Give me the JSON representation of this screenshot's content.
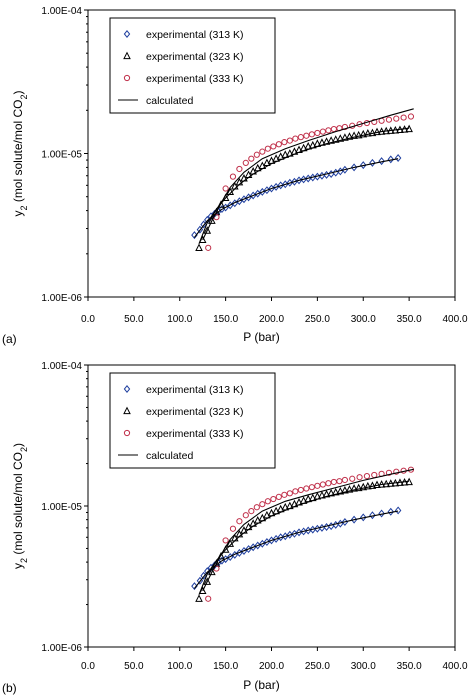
{
  "chart_data": [
    {
      "type": "scatter",
      "panel_label": "(a)",
      "xlabel": "P (bar)",
      "ylabel_main": "y",
      "ylabel_sub": "2",
      "ylabel_rest": " (mol solute/mol CO",
      "ylabel_sub2": "2",
      "ylabel_end": ")",
      "xlim": [
        0,
        400
      ],
      "ylim": [
        1e-06,
        0.0001
      ],
      "yscale": "log",
      "xticks": [
        "0.0",
        "50.0",
        "100.0",
        "150.0",
        "200.0",
        "250.0",
        "300.0",
        "350.0",
        "400.0"
      ],
      "yticks": [
        "1.00E-06",
        "1.00E-05",
        "1.00E-04"
      ],
      "legend_position": "top-left",
      "series": [
        {
          "name": "experimental (313 K)",
          "marker": "diamond",
          "color": "#1f3f9f",
          "x": [
            116,
            122,
            126,
            130,
            134,
            138,
            142,
            146,
            150,
            155,
            160,
            165,
            170,
            175,
            180,
            185,
            190,
            195,
            200,
            205,
            210,
            215,
            220,
            225,
            230,
            235,
            240,
            245,
            250,
            255,
            260,
            265,
            270,
            275,
            280,
            290,
            300,
            310,
            320,
            330,
            338
          ],
          "y": [
            2.7e-06,
            2.95e-06,
            3.2e-06,
            3.45e-06,
            3.65e-06,
            3.8e-06,
            3.95e-06,
            4.1e-06,
            4.2e-06,
            4.35e-06,
            4.5e-06,
            4.65e-06,
            4.8e-06,
            4.95e-06,
            5.1e-06,
            5.25e-06,
            5.4e-06,
            5.55e-06,
            5.7e-06,
            5.85e-06,
            6e-06,
            6.1e-06,
            6.25e-06,
            6.35e-06,
            6.5e-06,
            6.6e-06,
            6.7e-06,
            6.8e-06,
            6.9e-06,
            7e-06,
            7.1e-06,
            7.2e-06,
            7.35e-06,
            7.5e-06,
            7.7e-06,
            8e-06,
            8.3e-06,
            8.6e-06,
            8.85e-06,
            9.1e-06,
            9.3e-06
          ]
        },
        {
          "name": "experimental (323 K)",
          "marker": "triangle",
          "color": "#000000",
          "x": [
            121,
            125,
            130,
            135,
            140,
            145,
            150,
            155,
            160,
            165,
            170,
            175,
            180,
            185,
            190,
            195,
            200,
            205,
            210,
            215,
            220,
            225,
            230,
            235,
            240,
            245,
            250,
            255,
            260,
            265,
            270,
            275,
            280,
            285,
            290,
            295,
            300,
            305,
            310,
            315,
            320,
            325,
            330,
            335,
            340,
            345,
            350
          ],
          "y": [
            2.2e-06,
            2.5e-06,
            2.9e-06,
            3.4e-06,
            3.9e-06,
            4.4e-06,
            4.9e-06,
            5.4e-06,
            5.9e-06,
            6.3e-06,
            6.7e-06,
            7.1e-06,
            7.5e-06,
            7.9e-06,
            8.2e-06,
            8.6e-06,
            8.9e-06,
            9.2e-06,
            9.5e-06,
            9.8e-06,
            1e-05,
            1.03e-05,
            1.06e-05,
            1.09e-05,
            1.12e-05,
            1.14e-05,
            1.17e-05,
            1.19e-05,
            1.21e-05,
            1.23e-05,
            1.25e-05,
            1.27e-05,
            1.29e-05,
            1.31e-05,
            1.33e-05,
            1.34e-05,
            1.36e-05,
            1.38e-05,
            1.39e-05,
            1.41e-05,
            1.42e-05,
            1.43e-05,
            1.44e-05,
            1.45e-05,
            1.46e-05,
            1.47e-05,
            1.48e-05
          ]
        },
        {
          "name": "experimental (333 K)",
          "marker": "circle",
          "color": "#c0304a",
          "x": [
            131,
            140,
            150,
            158,
            165,
            172,
            178,
            184,
            190,
            196,
            202,
            208,
            214,
            220,
            226,
            232,
            238,
            244,
            250,
            256,
            262,
            268,
            274,
            280,
            288,
            296,
            304,
            312,
            320,
            328,
            336,
            344,
            352
          ],
          "y": [
            2.2e-06,
            3.6e-06,
            5.7e-06,
            6.9e-06,
            7.8e-06,
            8.6e-06,
            9.2e-06,
            9.8e-06,
            1.03e-05,
            1.08e-05,
            1.12e-05,
            1.16e-05,
            1.2e-05,
            1.23e-05,
            1.27e-05,
            1.3e-05,
            1.33e-05,
            1.36e-05,
            1.39e-05,
            1.42e-05,
            1.45e-05,
            1.48e-05,
            1.5e-05,
            1.53e-05,
            1.56e-05,
            1.6e-05,
            1.63e-05,
            1.66e-05,
            1.69e-05,
            1.72e-05,
            1.75e-05,
            1.78e-05,
            1.81e-05
          ]
        },
        {
          "name": "calculated",
          "marker": "line",
          "color": "#000000",
          "lines": [
            {
              "x": [
                116,
                130,
                145,
                160,
                180,
                200,
                230,
                260,
                290,
                320,
                338
              ],
              "y": [
                2.6e-06,
                3.4e-06,
                4.05e-06,
                4.55e-06,
                5.1e-06,
                5.7e-06,
                6.5e-06,
                7.2e-06,
                8e-06,
                8.75e-06,
                9.2e-06
              ]
            },
            {
              "x": [
                121,
                130,
                140,
                150,
                165,
                180,
                200,
                230,
                260,
                290,
                320,
                350
              ],
              "y": [
                2.35e-06,
                3.3e-06,
                4.1e-06,
                4.9e-06,
                6.1e-06,
                7.2e-06,
                8.5e-06,
                1.02e-05,
                1.17e-05,
                1.3e-05,
                1.42e-05,
                1.5e-05
              ]
            },
            {
              "x": [
                125,
                135,
                145,
                155,
                170,
                190,
                215,
                240,
                270,
                300,
                330,
                355
              ],
              "y": [
                2.5e-06,
                3.4e-06,
                4.5e-06,
                5.8e-06,
                7.4e-06,
                9.2e-06,
                1.08e-05,
                1.23e-05,
                1.42e-05,
                1.62e-05,
                1.85e-05,
                2.05e-05
              ]
            }
          ]
        }
      ]
    },
    {
      "type": "scatter",
      "panel_label": "(b)",
      "xlabel": "P (bar)",
      "ylabel_main": "y",
      "ylabel_sub": "2",
      "ylabel_rest": " (mol solute/mol CO",
      "ylabel_sub2": "2",
      "ylabel_end": ")",
      "xlim": [
        0,
        400
      ],
      "ylim": [
        1e-06,
        0.0001
      ],
      "yscale": "log",
      "xticks": [
        "0.0",
        "50.0",
        "100.0",
        "150.0",
        "200.0",
        "250.0",
        "300.0",
        "350.0",
        "400.0"
      ],
      "yticks": [
        "1.00E-06",
        "1.00E-05",
        "1.00E-04"
      ],
      "legend_position": "top-left",
      "series": [
        {
          "name": "experimental (313 K)",
          "marker": "diamond",
          "color": "#1f3f9f",
          "x": [
            116,
            122,
            126,
            130,
            134,
            138,
            142,
            146,
            150,
            155,
            160,
            165,
            170,
            175,
            180,
            185,
            190,
            195,
            200,
            205,
            210,
            215,
            220,
            225,
            230,
            235,
            240,
            245,
            250,
            255,
            260,
            265,
            270,
            275,
            280,
            290,
            300,
            310,
            320,
            330,
            338
          ],
          "y": [
            2.7e-06,
            2.95e-06,
            3.2e-06,
            3.45e-06,
            3.65e-06,
            3.8e-06,
            3.95e-06,
            4.1e-06,
            4.2e-06,
            4.35e-06,
            4.5e-06,
            4.65e-06,
            4.8e-06,
            4.95e-06,
            5.1e-06,
            5.25e-06,
            5.4e-06,
            5.55e-06,
            5.7e-06,
            5.85e-06,
            6e-06,
            6.1e-06,
            6.25e-06,
            6.35e-06,
            6.5e-06,
            6.6e-06,
            6.7e-06,
            6.8e-06,
            6.9e-06,
            7e-06,
            7.1e-06,
            7.2e-06,
            7.35e-06,
            7.5e-06,
            7.7e-06,
            8e-06,
            8.3e-06,
            8.6e-06,
            8.85e-06,
            9.1e-06,
            9.3e-06
          ]
        },
        {
          "name": "experimental (323 K)",
          "marker": "triangle",
          "color": "#000000",
          "x": [
            121,
            125,
            130,
            135,
            140,
            145,
            150,
            155,
            160,
            165,
            170,
            175,
            180,
            185,
            190,
            195,
            200,
            205,
            210,
            215,
            220,
            225,
            230,
            235,
            240,
            245,
            250,
            255,
            260,
            265,
            270,
            275,
            280,
            285,
            290,
            295,
            300,
            305,
            310,
            315,
            320,
            325,
            330,
            335,
            340,
            345,
            350
          ],
          "y": [
            2.2e-06,
            2.5e-06,
            2.9e-06,
            3.4e-06,
            3.9e-06,
            4.4e-06,
            4.9e-06,
            5.4e-06,
            5.9e-06,
            6.3e-06,
            6.7e-06,
            7.1e-06,
            7.5e-06,
            7.9e-06,
            8.2e-06,
            8.6e-06,
            8.9e-06,
            9.2e-06,
            9.5e-06,
            9.8e-06,
            1e-05,
            1.03e-05,
            1.06e-05,
            1.09e-05,
            1.12e-05,
            1.14e-05,
            1.17e-05,
            1.19e-05,
            1.21e-05,
            1.23e-05,
            1.25e-05,
            1.27e-05,
            1.29e-05,
            1.31e-05,
            1.33e-05,
            1.34e-05,
            1.36e-05,
            1.38e-05,
            1.39e-05,
            1.41e-05,
            1.42e-05,
            1.43e-05,
            1.44e-05,
            1.45e-05,
            1.46e-05,
            1.47e-05,
            1.48e-05
          ]
        },
        {
          "name": "experimental (333 K)",
          "marker": "circle",
          "color": "#c0304a",
          "x": [
            131,
            140,
            150,
            158,
            165,
            172,
            178,
            184,
            190,
            196,
            202,
            208,
            214,
            220,
            226,
            232,
            238,
            244,
            250,
            256,
            262,
            268,
            274,
            280,
            288,
            296,
            304,
            312,
            320,
            328,
            336,
            344,
            352
          ],
          "y": [
            2.2e-06,
            3.6e-06,
            5.7e-06,
            6.9e-06,
            7.8e-06,
            8.6e-06,
            9.2e-06,
            9.8e-06,
            1.03e-05,
            1.08e-05,
            1.12e-05,
            1.16e-05,
            1.2e-05,
            1.23e-05,
            1.27e-05,
            1.3e-05,
            1.33e-05,
            1.36e-05,
            1.39e-05,
            1.42e-05,
            1.45e-05,
            1.48e-05,
            1.5e-05,
            1.53e-05,
            1.56e-05,
            1.6e-05,
            1.63e-05,
            1.66e-05,
            1.69e-05,
            1.72e-05,
            1.75e-05,
            1.78e-05,
            1.81e-05
          ]
        },
        {
          "name": "calculated",
          "marker": "line",
          "color": "#000000",
          "lines": [
            {
              "x": [
                116,
                130,
                145,
                160,
                180,
                200,
                230,
                260,
                290,
                320,
                338
              ],
              "y": [
                2.6e-06,
                3.4e-06,
                4.05e-06,
                4.55e-06,
                5.1e-06,
                5.7e-06,
                6.5e-06,
                7.2e-06,
                8e-06,
                8.75e-06,
                9.2e-06
              ]
            },
            {
              "x": [
                121,
                130,
                140,
                150,
                165,
                180,
                200,
                230,
                260,
                290,
                320,
                350
              ],
              "y": [
                2.35e-06,
                3.3e-06,
                4.1e-06,
                4.9e-06,
                6.1e-06,
                7.2e-06,
                8.5e-06,
                1.02e-05,
                1.17e-05,
                1.3e-05,
                1.42e-05,
                1.5e-05
              ]
            },
            {
              "x": [
                125,
                135,
                145,
                155,
                170,
                190,
                215,
                240,
                270,
                300,
                330,
                355
              ],
              "y": [
                2.5e-06,
                3.4e-06,
                4.5e-06,
                5.8e-06,
                7.4e-06,
                9.2e-06,
                1.08e-05,
                1.2e-05,
                1.35e-05,
                1.52e-05,
                1.68e-05,
                1.82e-05
              ]
            }
          ]
        }
      ]
    }
  ]
}
